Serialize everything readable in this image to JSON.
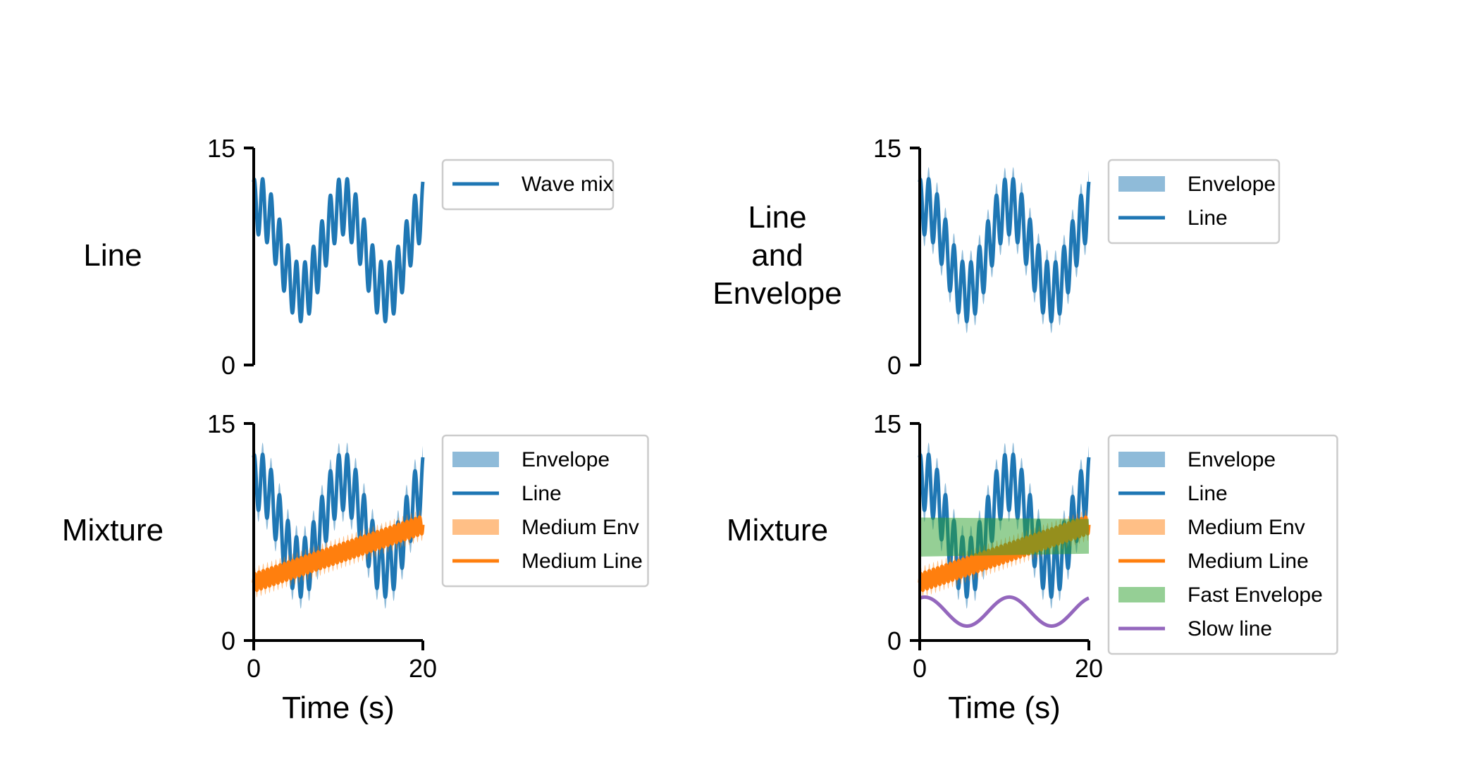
{
  "chart_data": [
    {
      "type": "line",
      "row_label": [
        "Line"
      ],
      "ylim": [
        0,
        15
      ],
      "xlim": [
        0,
        20
      ],
      "yticks": [
        "0",
        "15"
      ],
      "xticks": [],
      "xlabel": "",
      "legend_placement": "outside-right",
      "layers": [
        {
          "kind": "line",
          "signal": "wave_mix",
          "name": "Wave mix",
          "color": "#1f77b4"
        }
      ]
    },
    {
      "type": "line",
      "row_label": [
        "Line",
        "and",
        "Envelope"
      ],
      "ylim": [
        0,
        15
      ],
      "xlim": [
        0,
        20
      ],
      "yticks": [
        "0",
        "15"
      ],
      "xticks": [],
      "xlabel": "",
      "legend_placement": "outside-right",
      "layers": [
        {
          "kind": "band",
          "signal": "wave_mix",
          "half_width": 0.8,
          "name": "Envelope",
          "color": "#1f77b4",
          "alpha": 0.5
        },
        {
          "kind": "line",
          "signal": "wave_mix",
          "name": "Line",
          "color": "#1f77b4"
        }
      ]
    },
    {
      "type": "line",
      "row_label": [
        "Mixture"
      ],
      "ylim": [
        0,
        15
      ],
      "xlim": [
        0,
        20
      ],
      "yticks": [
        "0",
        "15"
      ],
      "xticks": [
        "0",
        "20"
      ],
      "xlabel": "Time (s)",
      "legend_placement": "outside-right",
      "layers": [
        {
          "kind": "band",
          "signal": "wave_mix",
          "half_width": 0.8,
          "name": "Envelope",
          "color": "#1f77b4",
          "alpha": 0.5
        },
        {
          "kind": "line",
          "signal": "wave_mix",
          "name": "Line",
          "color": "#1f77b4"
        },
        {
          "kind": "band",
          "signal": "medium",
          "half_width": 0.5,
          "name": "Medium Env",
          "color": "#ff7f0e",
          "alpha": 0.5
        },
        {
          "kind": "line",
          "signal": "medium",
          "name": "Medium Line",
          "color": "#ff7f0e"
        }
      ]
    },
    {
      "type": "line",
      "row_label": [
        "Mixture"
      ],
      "ylim": [
        0,
        15
      ],
      "xlim": [
        0,
        20
      ],
      "yticks": [
        "0",
        "15"
      ],
      "xticks": [
        "0",
        "20"
      ],
      "xlabel": "Time (s)",
      "legend_placement": "outside-right",
      "layers": [
        {
          "kind": "band",
          "signal": "wave_mix",
          "half_width": 0.8,
          "name": "Envelope",
          "color": "#1f77b4",
          "alpha": 0.5
        },
        {
          "kind": "line",
          "signal": "wave_mix",
          "name": "Line",
          "color": "#1f77b4"
        },
        {
          "kind": "band",
          "signal": "medium",
          "half_width": 0.5,
          "name": "Medium Env",
          "color": "#ff7f0e",
          "alpha": 0.5
        },
        {
          "kind": "line",
          "signal": "medium",
          "name": "Medium Line",
          "color": "#ff7f0e"
        },
        {
          "kind": "fast_band",
          "name": "Fast Envelope",
          "color": "#2ca02c",
          "alpha": 0.5,
          "lower_start": 5.8,
          "lower_end": 6.0,
          "upper_start": 8.5,
          "upper_end": 8.4
        },
        {
          "kind": "line",
          "signal": "slow",
          "name": "Slow line",
          "color": "#9467bd"
        }
      ]
    }
  ],
  "signals": {
    "wave_mix": {
      "offset": 8,
      "slow_amp": 3,
      "slow_period": 10,
      "fast_amp": 2,
      "fast_period": 1.0,
      "phase": 1.2
    },
    "medium": {
      "start": 4,
      "end": 8,
      "fast_amp": 0.6,
      "fast_period": 0.5
    },
    "slow": {
      "offset": 2,
      "amp": 1,
      "period": 10,
      "phase": 1.2
    }
  }
}
